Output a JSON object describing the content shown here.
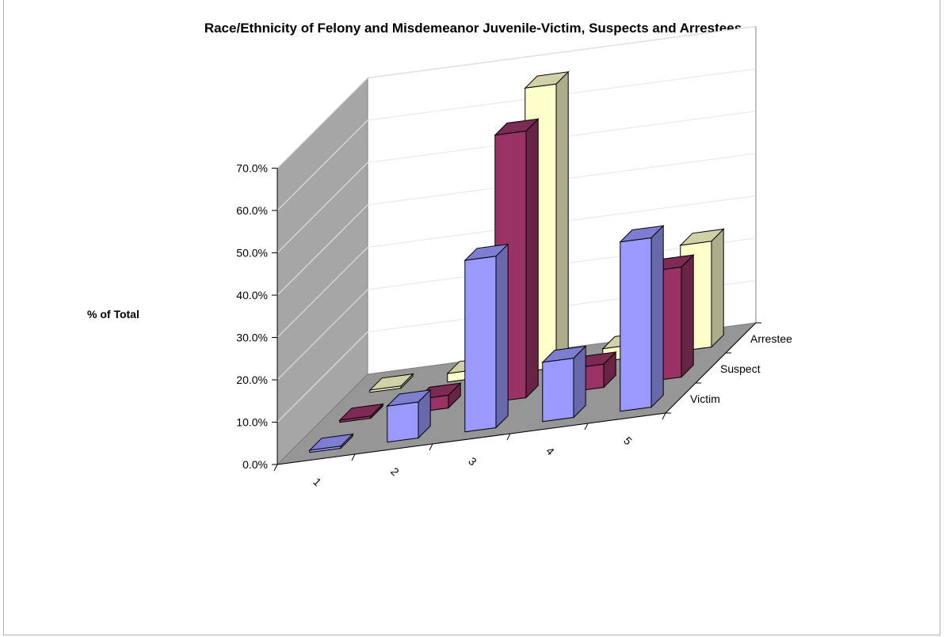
{
  "chart_data": {
    "type": "bar",
    "title": "Race/Ethnicity of Felony and Misdemeanor Juvenile-Victim, Suspects and Arrestees",
    "xlabel": "",
    "ylabel": "% of Total",
    "categories": [
      "1",
      "2",
      "3",
      "4",
      "5"
    ],
    "y_ticks": [
      "0.0%",
      "10.0%",
      "20.0%",
      "30.0%",
      "40.0%",
      "50.0%",
      "60.0%",
      "70.0%"
    ],
    "ylim": [
      0,
      70
    ],
    "depth_labels": [
      "Victim",
      "Suspect",
      "Arrestee"
    ],
    "series": [
      {
        "name": "Victim",
        "color": "#9999ff",
        "values": [
          0.5,
          8.5,
          40.5,
          14.0,
          40.0
        ]
      },
      {
        "name": "Suspect",
        "color": "#993366",
        "values": [
          0.5,
          3.0,
          63.0,
          5.5,
          26.0
        ]
      },
      {
        "name": "Arrestee",
        "color": "#ffffcc",
        "values": [
          0.5,
          2.0,
          67.0,
          3.0,
          25.0
        ]
      }
    ],
    "grid": true,
    "legend": "none"
  }
}
